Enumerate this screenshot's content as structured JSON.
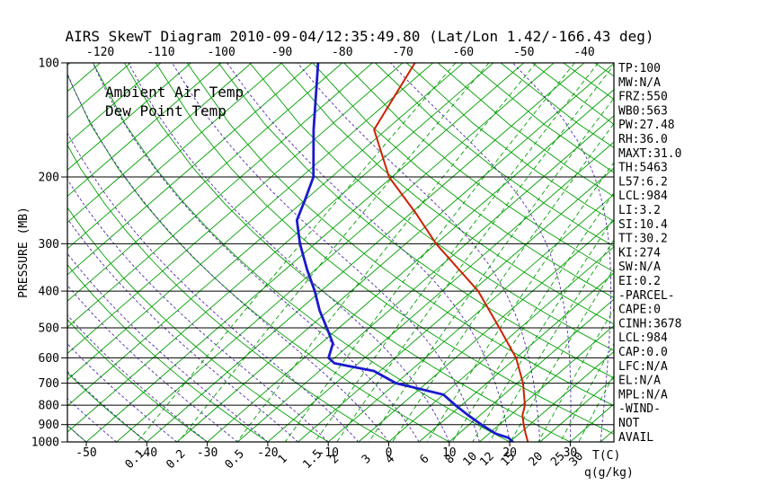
{
  "title": "AIRS SkewT Diagram 2010-09-04/12:35:49.80 (Lat/Lon 1.42/-166.43 deg)",
  "legend": {
    "temp": "Ambient Air Temp",
    "dewpoint": "Dew Point Temp"
  },
  "axes": {
    "pressure_label": "PRESSURE (MB)",
    "pressure_ticks": [
      100,
      200,
      300,
      400,
      500,
      600,
      700,
      800,
      900,
      1000
    ],
    "top_temp_ticks": [
      -120,
      -110,
      -100,
      -90,
      -80,
      -70,
      -60,
      -50,
      -40
    ],
    "bottom_temp_ticks": [
      -50,
      -40,
      -30,
      -20,
      -10,
      0,
      10,
      20,
      30
    ],
    "temp_unit_label": "T(C)",
    "mixing_ratio_unit_label": "q(g/kg)"
  },
  "stats_panel": [
    "TP:100",
    "MW:N/A",
    "FRZ:550",
    "WB0:563",
    "PW:27.48",
    "RH:36.0",
    "MAXT:31.0",
    "TH:5463",
    "L57:6.2",
    "LCL:984",
    "LI:3.2",
    "SI:10.4",
    "TT:30.2",
    "KI:274",
    "SW:N/A",
    "EI:0.2",
    "-PARCEL-",
    "CAPE:0",
    "CINH:3678",
    "LCL:984",
    "CAP:0.0",
    "LFC:N/A",
    "EL:N/A",
    "MPL:N/A",
    "-WIND-",
    "NOT",
    "AVAIL"
  ],
  "colors": {
    "red": "#cc2200",
    "blue": "#1a1acd",
    "green": "#00a000",
    "purple": "#5128a8",
    "black": "#000000"
  },
  "chart_data": {
    "type": "line",
    "title": "AIRS SkewT Diagram 2010-09-04/12:35:49.80 (Lat/Lon 1.42/-166.43 deg)",
    "x_axis_label": "T(C)",
    "y_axis_label": "PRESSURE (MB)",
    "y_scale": "log",
    "y_range_mb": [
      100,
      1000
    ],
    "x_range_at_surface_c": [
      -53,
      37
    ],
    "grid": {
      "isotherm_step_c": 5,
      "dry_adiabats_theta_c": {
        "min": -50,
        "max": 190,
        "step": 10
      },
      "moist_adiabats_thetaw_c": {
        "min": -60,
        "max": 40,
        "step": 5
      },
      "mixing_ratio_lines_g_kg": [
        0.1,
        0.2,
        0.5,
        1,
        1.5,
        2,
        3,
        4,
        6,
        8,
        10,
        12,
        15,
        20,
        25,
        30
      ]
    },
    "series": [
      {
        "name": "Ambient Air Temp",
        "color_key": "red",
        "points_p_t": [
          [
            1000,
            23
          ],
          [
            950,
            21
          ],
          [
            900,
            19
          ],
          [
            850,
            17
          ],
          [
            800,
            15.5
          ],
          [
            700,
            11
          ],
          [
            600,
            5
          ],
          [
            500,
            -3.5
          ],
          [
            400,
            -14
          ],
          [
            300,
            -30
          ],
          [
            250,
            -39
          ],
          [
            200,
            -50.5
          ],
          [
            150,
            -62
          ],
          [
            100,
            -68
          ]
        ]
      },
      {
        "name": "Dew Point Temp",
        "color_key": "blue",
        "points_p_t": [
          [
            1000,
            20.5
          ],
          [
            975,
            19
          ],
          [
            950,
            16
          ],
          [
            900,
            12
          ],
          [
            850,
            8
          ],
          [
            800,
            4
          ],
          [
            750,
            0
          ],
          [
            700,
            -10
          ],
          [
            650,
            -16
          ],
          [
            620,
            -24
          ],
          [
            600,
            -26
          ],
          [
            550,
            -28
          ],
          [
            500,
            -32
          ],
          [
            450,
            -36.5
          ],
          [
            400,
            -41
          ],
          [
            350,
            -46.5
          ],
          [
            300,
            -52.5
          ],
          [
            260,
            -57.5
          ],
          [
            230,
            -60
          ],
          [
            200,
            -63
          ],
          [
            150,
            -72
          ],
          [
            100,
            -84
          ]
        ]
      }
    ]
  }
}
